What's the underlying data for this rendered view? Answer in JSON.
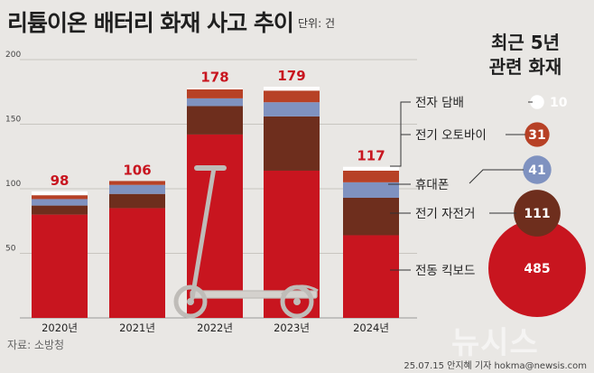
{
  "header": {
    "title": "리튬이온 배터리 화재 사고 추이",
    "unit": "단위: 건"
  },
  "right_panel": {
    "title_line1": "최근 5년",
    "title_line2": "관련 화재"
  },
  "footer": {
    "source": "자료: 소방청",
    "credit": "25.07.15 안지혜 기자 hokma@newsis.com",
    "watermark": "뉴시스"
  },
  "colors": {
    "background": "#e9e7e4",
    "전동 킥보드": "#c8151f",
    "전기 자전거": "#6e2e1d",
    "휴대폰": "#7f92c0",
    "전기 오토바이": "#b74126",
    "전자 담배": "#ffffff",
    "total_label": "#c8151f"
  },
  "chart_data": [
    {
      "type": "bar",
      "stacked": true,
      "categories": [
        "2020년",
        "2021년",
        "2022년",
        "2023년",
        "2024년"
      ],
      "ylim": [
        0,
        200
      ],
      "yticks": [
        50,
        100,
        150,
        200
      ],
      "grid": true,
      "totals": [
        98,
        106,
        178,
        179,
        117
      ],
      "series": [
        {
          "name": "전동 킥보드",
          "values": [
            80,
            85,
            142,
            114,
            64
          ]
        },
        {
          "name": "전기 자전거",
          "values": [
            7,
            11,
            22,
            42,
            29
          ]
        },
        {
          "name": "휴대폰",
          "values": [
            5,
            7,
            6,
            11,
            12
          ]
        },
        {
          "name": "전기 오토바이",
          "values": [
            3,
            3,
            7,
            9,
            9
          ]
        },
        {
          "name": "전자 담배",
          "values": [
            3,
            0,
            1,
            3,
            3
          ]
        }
      ]
    },
    {
      "type": "bubble",
      "title": "최근 5년 관련 화재",
      "items": [
        {
          "name": "전자 담배",
          "value": 10
        },
        {
          "name": "전기 오토바이",
          "value": 31
        },
        {
          "name": "휴대폰",
          "value": 41
        },
        {
          "name": "전기 자전거",
          "value": 111
        },
        {
          "name": "전동 킥보드",
          "value": 485
        }
      ]
    }
  ]
}
